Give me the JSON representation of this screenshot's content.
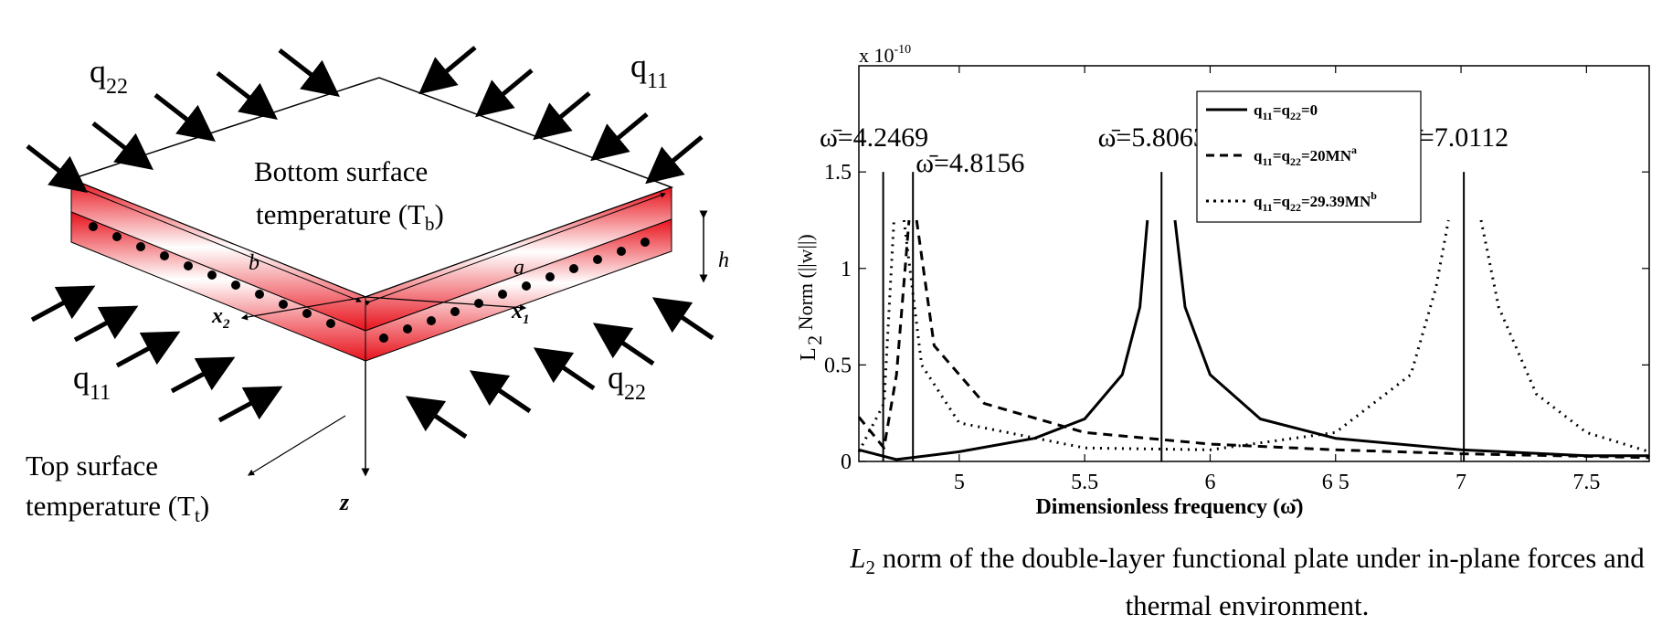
{
  "figure": {
    "diagram": {
      "q22_label_top": "q22",
      "q11_label_top": "q11",
      "q11_label_bottom": "q11",
      "q22_label_bottom": "q22",
      "bottom_surface_line1": "Bottom surface",
      "bottom_surface_line2": "temperature (Tb)",
      "top_surface_line1": "Top surface",
      "top_surface_line2": "temperature (Tt)",
      "dim_a": "a",
      "dim_b": "b",
      "dim_h": "h",
      "axis_x1": "x1",
      "axis_x2": "x2",
      "axis_z": "z",
      "colors": {
        "layer_red": "#e8121c",
        "layer_white": "#ffffff"
      }
    },
    "caption": {
      "symbol": "L",
      "symbol_sub": "2",
      "text": "norm of the double-layer functional plate under in-plane forces and thermal environment."
    }
  },
  "chart_data": {
    "type": "line",
    "multiplier_label": "x 10",
    "multiplier_exp": "-10",
    "xlabel": "Dimensionless frequency (ω̄)",
    "ylabel": "L2 Norm (||w||)",
    "xlim": [
      4.6,
      7.75
    ],
    "ylim": [
      0,
      2.05
    ],
    "x_ticks": [
      "5",
      "5.5",
      "6",
      "6 5",
      "7",
      "7.5"
    ],
    "x_tick_values": [
      5,
      5.5,
      6,
      6.5,
      7,
      7.5
    ],
    "y_ticks": [
      "0",
      "0.5",
      "1",
      "1.5"
    ],
    "y_tick_values": [
      0,
      0.5,
      1,
      1.5
    ],
    "grid": false,
    "legend_position": "top-center",
    "series": [
      {
        "name": "q11=q22=0",
        "style": "solid",
        "resonances": [
          5.8063
        ],
        "peak": 1.25,
        "floor": 0.03,
        "points": [
          [
            4.6,
            0.06
          ],
          [
            4.75,
            0.01
          ],
          [
            5.0,
            0.05
          ],
          [
            5.3,
            0.12
          ],
          [
            5.5,
            0.22
          ],
          [
            5.65,
            0.45
          ],
          [
            5.72,
            0.8
          ],
          [
            5.75,
            1.25
          ],
          [
            5.86,
            1.25
          ],
          [
            5.9,
            0.8
          ],
          [
            6.0,
            0.45
          ],
          [
            6.2,
            0.22
          ],
          [
            6.5,
            0.12
          ],
          [
            7.0,
            0.06
          ],
          [
            7.5,
            0.03
          ],
          [
            7.75,
            0.03
          ]
        ]
      },
      {
        "name": "q11=q22=20MN^a",
        "style": "dashed",
        "resonances": [
          4.8156
        ],
        "peak": 1.25,
        "floor": 0.02,
        "points": [
          [
            4.6,
            0.23
          ],
          [
            4.7,
            0.07
          ],
          [
            4.75,
            0.45
          ],
          [
            4.8,
            1.25
          ],
          [
            4.83,
            1.25
          ],
          [
            4.9,
            0.6
          ],
          [
            5.1,
            0.3
          ],
          [
            5.5,
            0.15
          ],
          [
            6.0,
            0.09
          ],
          [
            6.5,
            0.06
          ],
          [
            7.0,
            0.04
          ],
          [
            7.75,
            0.02
          ]
        ]
      },
      {
        "name": "q11=q22=29.39MN^b",
        "style": "dotted",
        "resonances": [
          4.2469,
          7.0112
        ],
        "peak": 1.25,
        "floor": 0.05,
        "points": [
          [
            4.6,
            0.05
          ],
          [
            4.7,
            0.3
          ],
          [
            4.74,
            1.25
          ],
          [
            4.78,
            1.25
          ],
          [
            4.85,
            0.5
          ],
          [
            5.0,
            0.2
          ],
          [
            5.5,
            0.07
          ],
          [
            6.0,
            0.06
          ],
          [
            6.5,
            0.15
          ],
          [
            6.8,
            0.45
          ],
          [
            6.9,
            0.9
          ],
          [
            6.95,
            1.25
          ],
          [
            7.08,
            1.25
          ],
          [
            7.15,
            0.8
          ],
          [
            7.3,
            0.35
          ],
          [
            7.5,
            0.15
          ],
          [
            7.75,
            0.05
          ]
        ]
      }
    ],
    "annotations": [
      {
        "text": "ω̄=4.2469",
        "x": 4.6969
      },
      {
        "text": "ω̄=4.8156",
        "x": 4.8156
      },
      {
        "text": "ω̄=5.8063",
        "x": 5.8063
      },
      {
        "text": "ω̄=7.0112",
        "x": 7.0112
      }
    ]
  }
}
